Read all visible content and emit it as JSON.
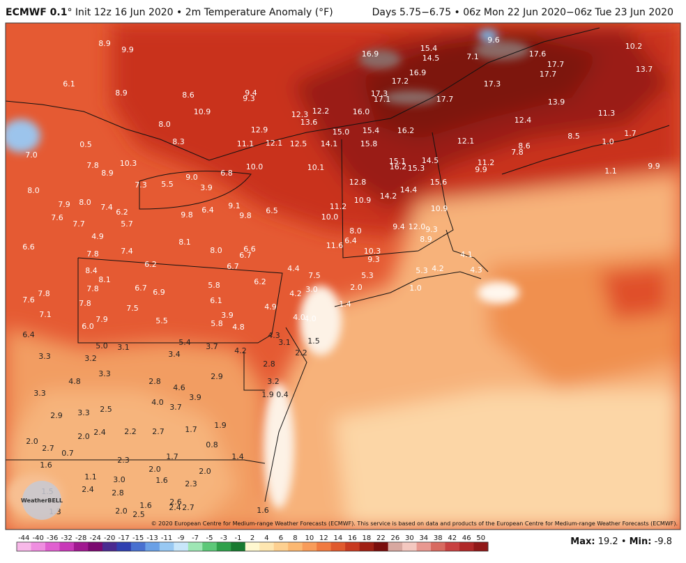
{
  "header": {
    "title": "ECMWF 0.1",
    "title_rest": "° Init 12z 16 Jun 2020 • 2m Temperature Anomaly (°F)",
    "valid": "Days 5.75−6.75 • 06z Mon 22 Jun 2020−06z Tue 23 Jun 2020"
  },
  "map": {
    "logo": "WeatherBELL",
    "credit": "© 2020 European Centre for Medium-range Weather Forecasts (ECMWF). This service is based on data and products of the European Centre for Medium-range Weather Forecasts (ECMWF).",
    "labels": [
      "8.9",
      "9.9",
      "6.1",
      "8.9",
      "8.6",
      "9.4",
      "9.3",
      "10.9",
      "12.3",
      "12.2",
      "13.6",
      "16.0",
      "16.9",
      "15.4",
      "14.5",
      "16.9",
      "17.2",
      "17.3",
      "17.1",
      "17.7",
      "17.3",
      "17.6",
      "17.7",
      "17.7",
      "13.9",
      "10.2",
      "13.7",
      "11.3",
      "12.4",
      "12.1",
      "11.2",
      "9.9",
      "8.6",
      "7.8",
      "9.9",
      "16.2",
      "15.4",
      "15.8",
      "15.0",
      "14.1",
      "12.5",
      "12.1",
      "11.1",
      "12.9",
      "8.0",
      "8.3",
      "0.5",
      "7.0",
      "7.8",
      "8.9",
      "10.3",
      "7.3",
      "5.5",
      "9.0",
      "3.9",
      "6.8",
      "10.0",
      "10.1",
      "15.1",
      "16.2",
      "15.3",
      "14.5",
      "15.6",
      "12.8",
      "10.9",
      "14.2",
      "14.4",
      "11.2",
      "10.0",
      "10.9",
      "9.4",
      "12.0",
      "9.3",
      "8.9",
      "8.0",
      "6.4",
      "11.6",
      "10.3",
      "9.3",
      "6.5",
      "9.1",
      "9.8",
      "9.8",
      "6.4",
      "6.2",
      "7.4",
      "5.7",
      "8.0",
      "7.9",
      "8.0",
      "7.6",
      "7.7",
      "4.9",
      "6.6",
      "7.8",
      "7.4",
      "8.1",
      "8.0",
      "6.6",
      "6.7",
      "6.2",
      "6.7",
      "4.4",
      "7.5",
      "5.3",
      "4.1",
      "4.2",
      "5.3",
      "4.3",
      "1.0",
      "2.0",
      "8.4",
      "8.1",
      "7.8",
      "6.7",
      "6.9",
      "5.8",
      "6.2",
      "3.0",
      "4.2",
      "6.1",
      "4.9",
      "1.4",
      "7.6",
      "7.8",
      "7.1",
      "7.8",
      "7.5",
      "7.9",
      "6.0",
      "5.5",
      "3.9",
      "5.8",
      "4.8",
      "4.0",
      "4.0",
      "6.4",
      "4.3",
      "3.1",
      "1.5",
      "5.0",
      "3.1",
      "5.4",
      "3.7",
      "4.2",
      "2.2",
      "3.3",
      "3.2",
      "3.4",
      "2.8",
      "3.3",
      "4.8",
      "2.8",
      "4.6",
      "2.9",
      "3.2",
      "3.3",
      "1.9",
      "0.4",
      "4.0",
      "3.7",
      "3.9",
      "2.5",
      "2.9",
      "3.3",
      "2.4",
      "2.2",
      "2.7",
      "1.7",
      "1.9",
      "2.0",
      "2.0",
      "2.7",
      "0.7",
      "0.8",
      "1.4",
      "2.3",
      "1.7",
      "2.0",
      "2.0",
      "1.6",
      "1.1",
      "3.0",
      "1.6",
      "2.3",
      "1.5",
      "2.4",
      "2.8",
      "1.6",
      "2.6",
      "2.4",
      "2.7",
      "2.0",
      "2.5",
      "1.3",
      "1.6",
      "9.6",
      "7.1",
      "8.5",
      "1.0",
      "1.7",
      "1.1"
    ]
  },
  "colorbar": {
    "ticks": [
      -44,
      -40,
      -36,
      -32,
      -28,
      -24,
      -20,
      -17,
      -15,
      -13,
      -11,
      -9,
      -7,
      -5,
      -3,
      -1,
      2,
      4,
      6,
      8,
      10,
      12,
      14,
      16,
      18,
      22,
      26,
      30,
      34,
      38,
      42,
      46,
      50
    ]
  },
  "footer": {
    "max_label": "Max:",
    "max": "19.2",
    "sep": "•",
    "min_label": "Min:",
    "min": "-9.8"
  }
}
